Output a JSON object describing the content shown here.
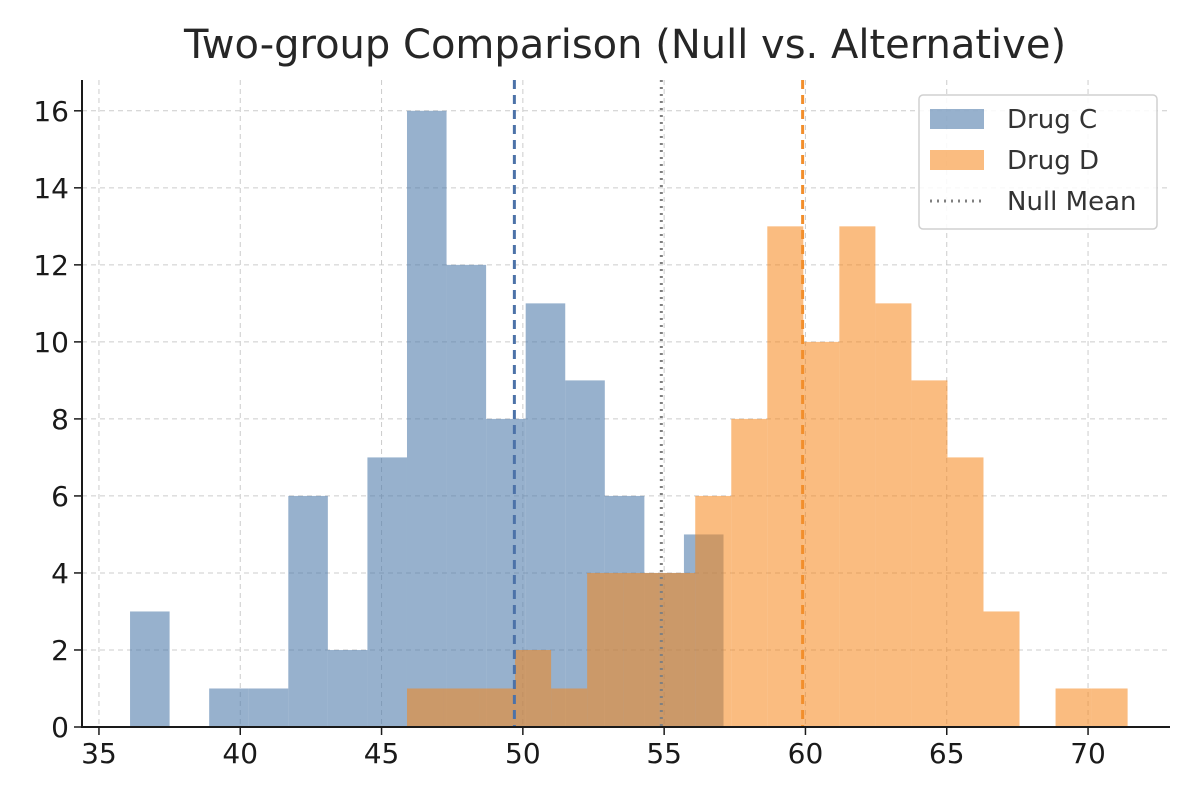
{
  "chart_data": {
    "type": "histogram",
    "title": "Two-group Comparison (Null vs. Alternative)",
    "xlabel": "",
    "ylabel": "",
    "xlim": [
      34.4,
      72.9
    ],
    "ylim": [
      0,
      16.8
    ],
    "x_ticks": [
      35,
      40,
      45,
      50,
      55,
      60,
      65,
      70
    ],
    "y_ticks": [
      0,
      2,
      4,
      6,
      8,
      10,
      12,
      14,
      16
    ],
    "grid": true,
    "legend_position": "top-right",
    "series": [
      {
        "name": "Drug C",
        "color": "#4c78a8",
        "opacity": 0.58,
        "bin_edges": [
          36.1,
          37.5,
          38.9,
          40.3,
          41.7,
          43.1,
          44.5,
          45.9,
          47.3,
          48.7,
          50.1,
          51.5,
          52.9,
          54.3,
          55.7,
          57.1
        ],
        "counts": [
          3,
          0,
          1,
          1,
          6,
          2,
          7,
          16,
          12,
          8,
          11,
          9,
          6,
          4,
          5
        ],
        "mean": 49.7,
        "mean_color": "#4c72a8"
      },
      {
        "name": "Drug D",
        "color": "#f58518",
        "opacity": 0.55,
        "bin_edges": [
          45.9,
          47.175,
          48.45,
          49.725,
          51.0,
          52.275,
          53.55,
          54.825,
          56.1,
          57.375,
          58.65,
          59.925,
          61.2,
          62.475,
          63.75,
          65.025,
          66.3,
          67.575,
          68.85,
          70.125,
          71.4
        ],
        "counts": [
          1,
          1,
          1,
          2,
          1,
          4,
          4,
          4,
          6,
          8,
          13,
          10,
          13,
          11,
          9,
          7,
          3,
          0,
          1,
          1
        ],
        "mean": 59.9,
        "mean_color": "#f28e2b"
      }
    ],
    "reference_lines": [
      {
        "name": "Null Mean",
        "x": 54.9,
        "color": "#808080",
        "style": "dotted"
      }
    ],
    "legend": {
      "entries": [
        "Drug C",
        "Drug D",
        "Null Mean"
      ]
    }
  }
}
